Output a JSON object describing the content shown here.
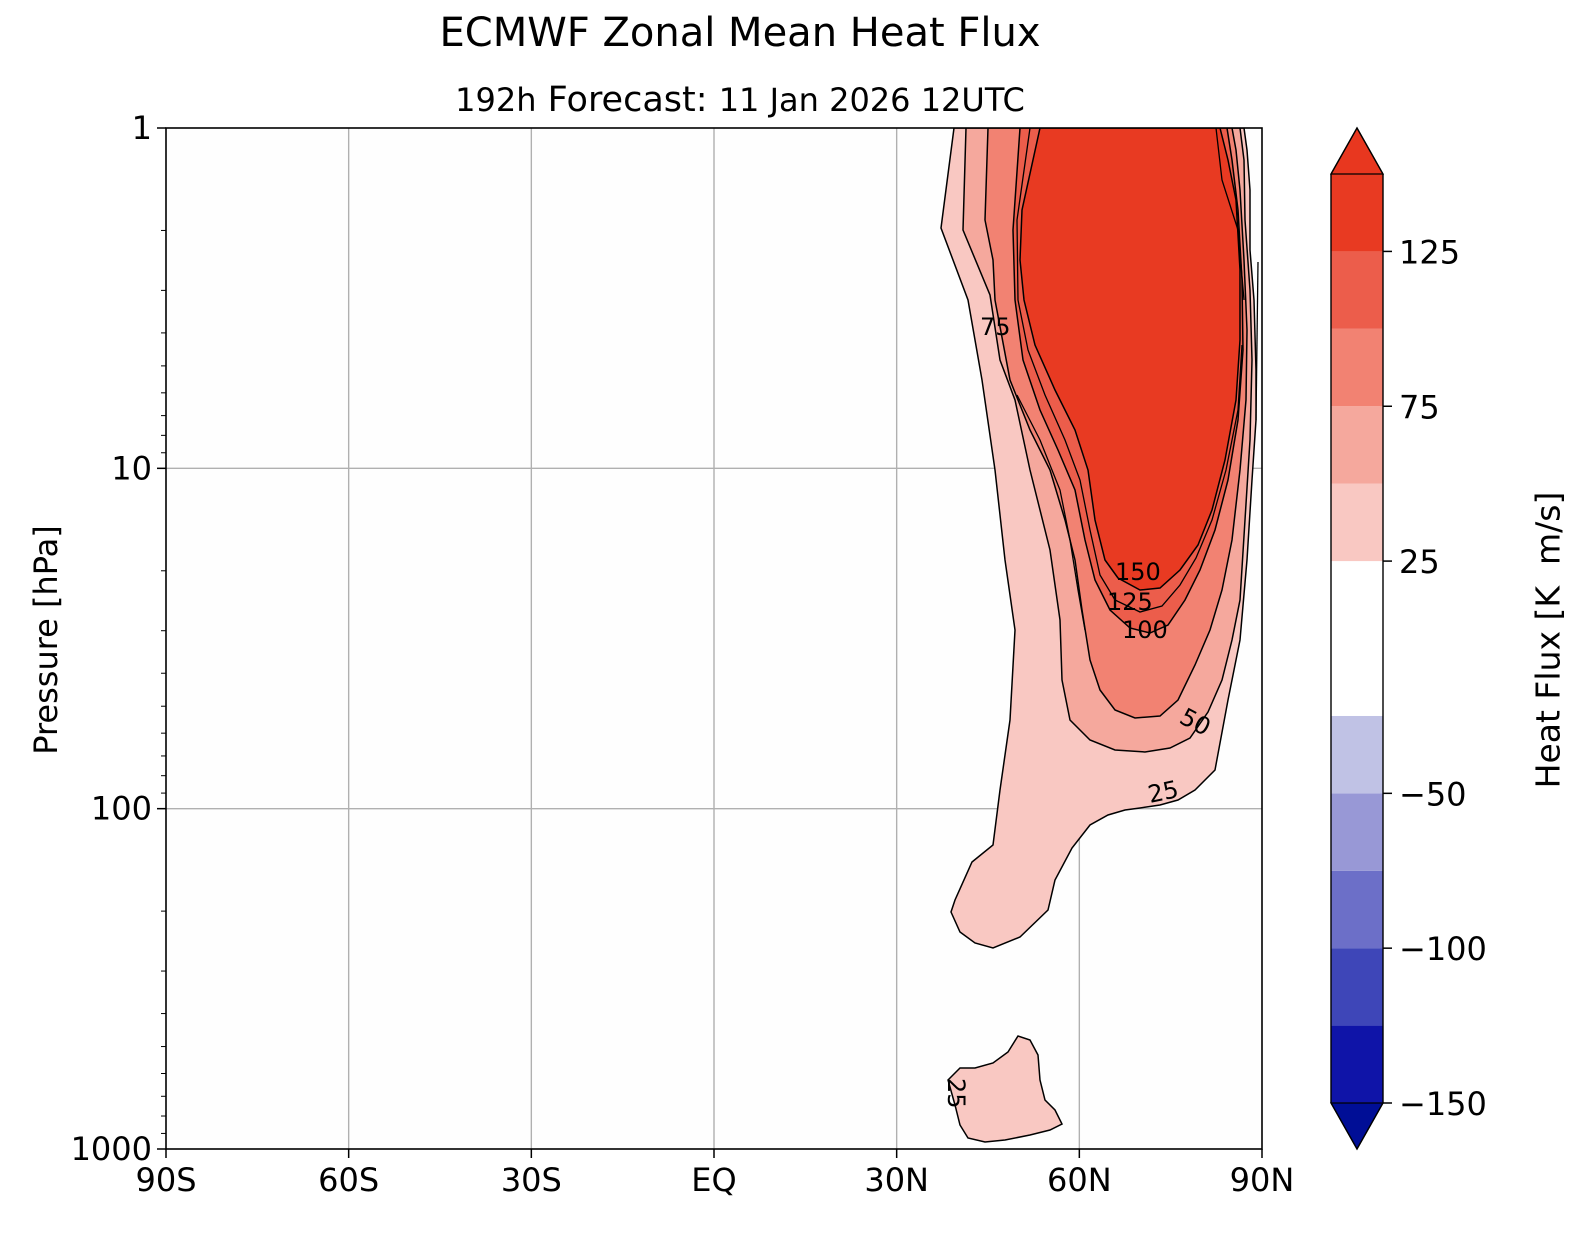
{
  "chart_data": {
    "type": "contour",
    "title": "ECMWF Zonal Mean Heat Flux",
    "subtitle": {
      "lead": "192h",
      "label": "Forecast:",
      "valid": "11 Jan 2026  12UTC"
    },
    "xlabel": "",
    "ylabel": "Pressure [hPa]",
    "x_ticks": [
      "90S",
      "60S",
      "30S",
      "EQ",
      "30N",
      "60N",
      "90N"
    ],
    "x_tick_values": [
      -90,
      -60,
      -30,
      0,
      30,
      60,
      90
    ],
    "xlim": [
      -90,
      90
    ],
    "y_ticks": [
      "1",
      "10",
      "100",
      "1000"
    ],
    "y_tick_values": [
      1,
      10,
      100,
      1000
    ],
    "ylim": [
      1000,
      1
    ],
    "y_scale": "log",
    "y_inverted": true,
    "grid": true,
    "contour_labels": [
      "75",
      "150",
      "125",
      "100",
      "50",
      "25",
      "25"
    ],
    "colorbar": {
      "label": "Heat Flux [K  m/s]",
      "ticks": [
        "125",
        "75",
        "25",
        "−50",
        "−100",
        "−150"
      ],
      "tick_values": [
        125,
        75,
        25,
        -50,
        -100,
        -150
      ],
      "extend": "both",
      "levels": [
        -150,
        -125,
        -100,
        -75,
        -50,
        -25,
        25,
        50,
        75,
        100,
        125,
        150
      ],
      "colors": [
        "#0f14a8",
        "#3e46b8",
        "#6c6fc8",
        "#9898d6",
        "#c0c2e5",
        "#ffffff",
        "#f9c8c2",
        "#f5a89d",
        "#f28272",
        "#ec5d4b",
        "#e83a22"
      ],
      "under_color": "#000e96",
      "over_color": "#e8371f"
    },
    "regions": [
      {
        "level_min": 25,
        "color": "#f9c8c2",
        "lat_range": [
          39,
          89
        ],
        "pressure_range": [
          1,
          300
        ],
        "note": "main NH positive region"
      },
      {
        "level_min": 25,
        "color": "#f9c8c2",
        "lat_range": [
          40,
          56
        ],
        "pressure_range": [
          450,
          1000
        ],
        "note": "lower-troposphere patch"
      },
      {
        "level_min": 50,
        "color": "#f5a89d",
        "lat_range": [
          42,
          88
        ],
        "pressure_range": [
          1,
          90
        ]
      },
      {
        "level_min": 75,
        "color": "#f28272",
        "lat_range": [
          45,
          87
        ],
        "pressure_range": [
          1,
          60
        ]
      },
      {
        "level_min": 100,
        "color": "#ec5d4b",
        "lat_range": [
          48,
          86
        ],
        "pressure_range": [
          1,
          35
        ]
      },
      {
        "level_min": 150,
        "color": "#e83a22",
        "lat_range": [
          57,
          86
        ],
        "pressure_range": [
          1,
          30
        ]
      }
    ]
  }
}
